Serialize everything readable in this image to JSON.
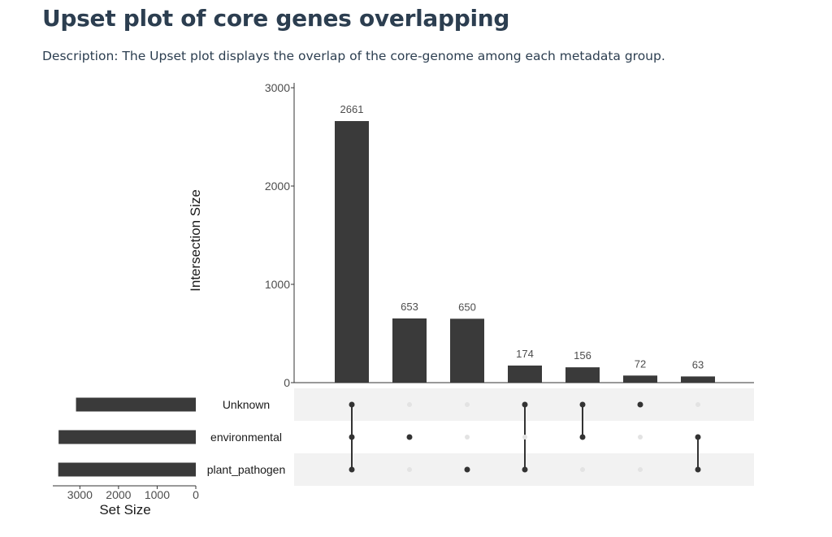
{
  "page": {
    "title": "Upset plot of core genes overlapping",
    "description": "Description: The Upset plot displays the overlap of the core-genome among each metadata group."
  },
  "chart_data": {
    "type": "upset",
    "ylabel": "Intersection Size",
    "xlabel_sets": "Set Size",
    "ylim": [
      0,
      3000
    ],
    "yticks": [
      0,
      1000,
      2000,
      3000
    ],
    "set_size_ticks": [
      3000,
      2000,
      1000,
      0
    ],
    "set_size_lim": [
      0,
      3700
    ],
    "sets": [
      {
        "name": "Unknown",
        "size": 3100
      },
      {
        "name": "environmental",
        "size": 3550
      },
      {
        "name": "plant_pathogen",
        "size": 3560
      }
    ],
    "intersections": [
      {
        "value": 2661,
        "members": [
          "Unknown",
          "environmental",
          "plant_pathogen"
        ]
      },
      {
        "value": 653,
        "members": [
          "environmental"
        ]
      },
      {
        "value": 650,
        "members": [
          "plant_pathogen"
        ]
      },
      {
        "value": 174,
        "members": [
          "Unknown",
          "plant_pathogen"
        ]
      },
      {
        "value": 156,
        "members": [
          "Unknown",
          "environmental"
        ]
      },
      {
        "value": 72,
        "members": [
          "Unknown"
        ]
      },
      {
        "value": 63,
        "members": [
          "environmental",
          "plant_pathogen"
        ]
      }
    ],
    "colors": {
      "bar": "#3a3a3a",
      "dot_on": "#333333",
      "dot_off": "#e3e3e3",
      "band": "#f2f2f2"
    }
  }
}
